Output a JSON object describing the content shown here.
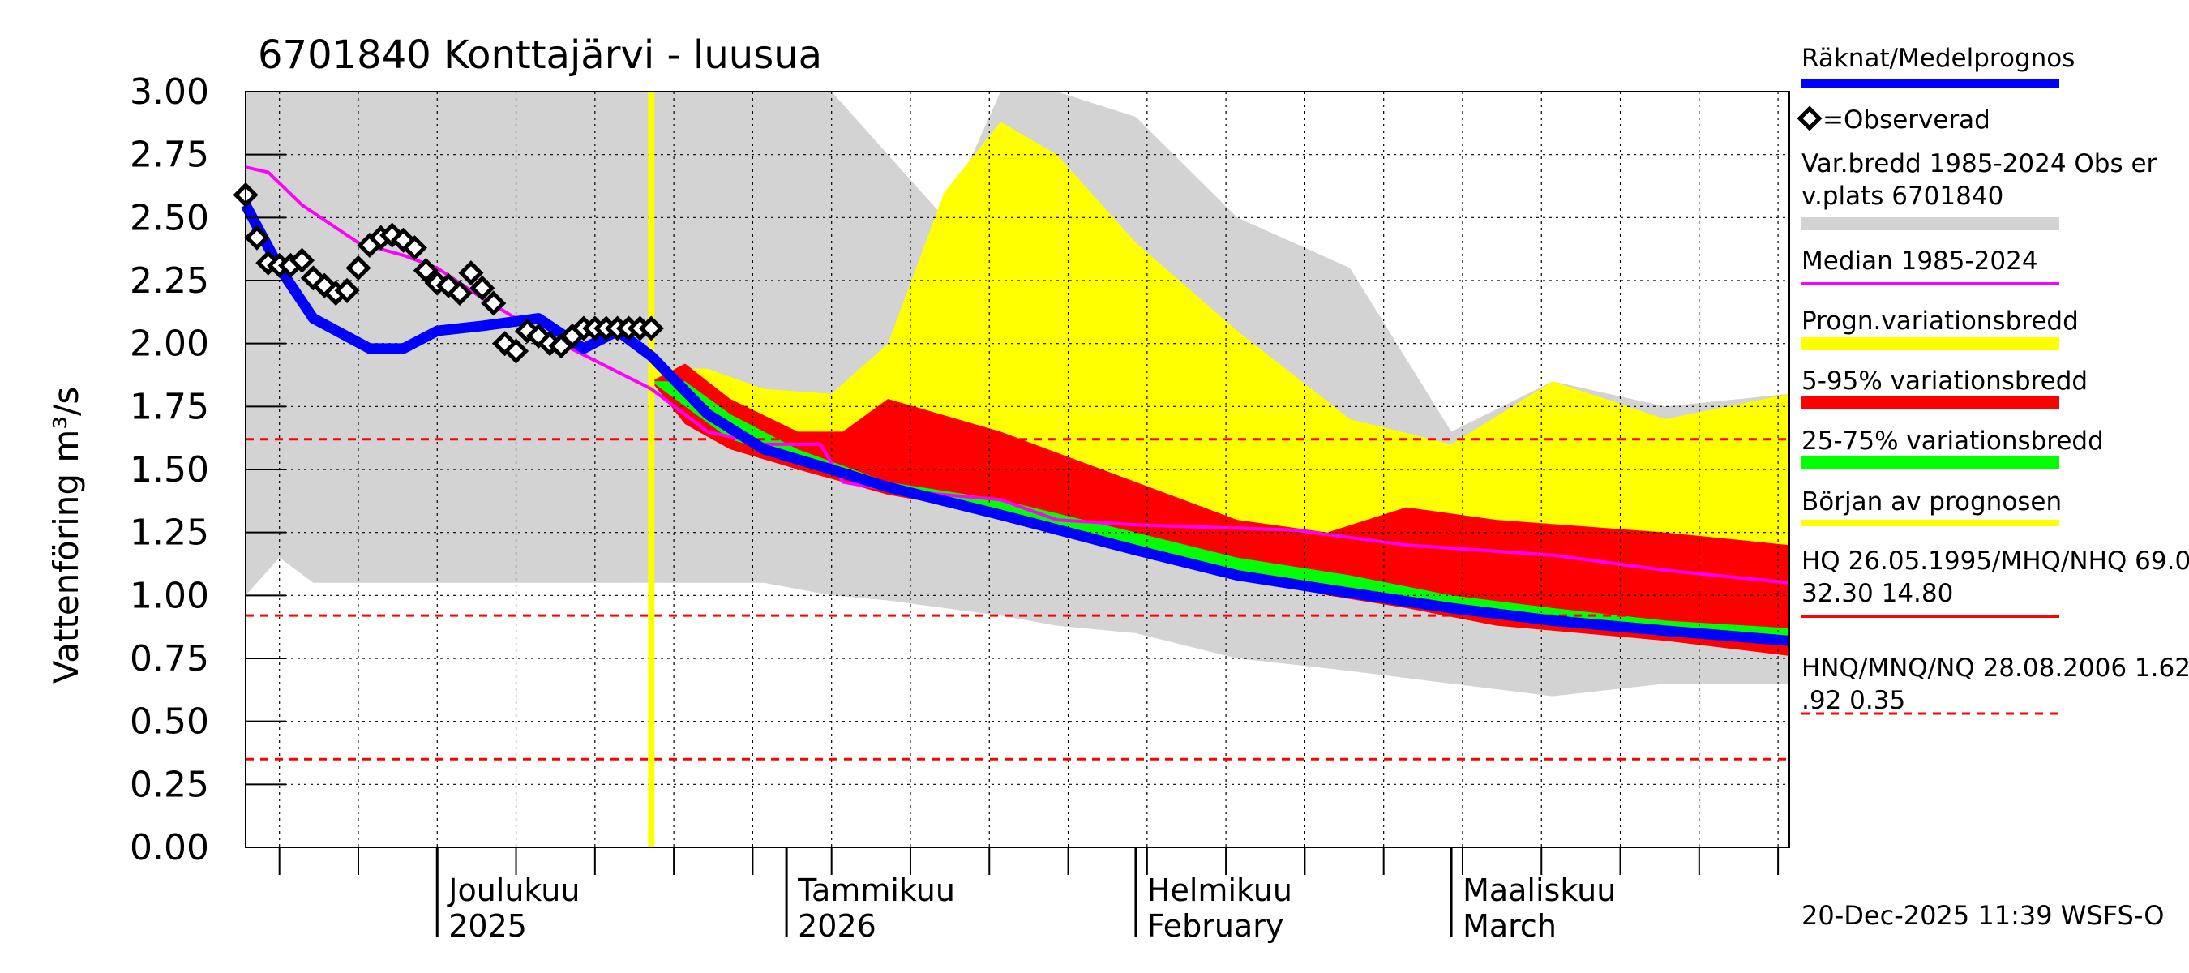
{
  "chart_data": {
    "type": "area",
    "title": "6701840 Konttajärvi - luusua",
    "ylabel": "Vattenföring m³/s",
    "ylim": [
      0,
      3.0
    ],
    "yticks": [
      "0.00",
      "0.25",
      "0.50",
      "0.75",
      "1.00",
      "1.25",
      "1.50",
      "1.75",
      "2.00",
      "2.25",
      "2.50",
      "2.75",
      "3.00"
    ],
    "x_start": "2025-11-14",
    "x_end": "2026-03-31",
    "forecast_start": "2025-12-20",
    "month_labels": [
      {
        "line1": "Joulukuu",
        "line2": "2025",
        "date": "2025-12-01"
      },
      {
        "line1": "Tammikuu",
        "line2": "2026",
        "date": "2026-01-01"
      },
      {
        "line1": "Helmikuu",
        "line2": "February",
        "date": "2026-02-01"
      },
      {
        "line1": "Maaliskuu",
        "line2": "March",
        "date": "2026-03-01"
      }
    ],
    "ref_lines": [
      1.62,
      0.92,
      0.35
    ],
    "series": [
      {
        "name": "Var.bredd 1985-2024 Obs erv.plats 6701840",
        "color": "#d3d3d3",
        "type": "band",
        "x": [
          "2025-11-14",
          "2025-11-17",
          "2025-11-20",
          "2025-11-25",
          "2025-12-01",
          "2025-12-10",
          "2025-12-20",
          "2025-12-30",
          "2026-01-05",
          "2026-01-10",
          "2026-01-15",
          "2026-01-20",
          "2026-01-25",
          "2026-02-01",
          "2026-02-10",
          "2026-02-20",
          "2026-03-01",
          "2026-03-10",
          "2026-03-20",
          "2026-03-31"
        ],
        "upper": [
          3.0,
          3.0,
          3.0,
          3.0,
          3.0,
          3.0,
          3.0,
          3.0,
          3.0,
          2.75,
          2.5,
          3.0,
          3.0,
          2.9,
          2.5,
          2.3,
          1.65,
          1.85,
          1.75,
          1.8
        ],
        "lower": [
          1.0,
          1.15,
          1.05,
          1.05,
          1.05,
          1.05,
          1.05,
          1.05,
          1.0,
          0.98,
          0.95,
          0.92,
          0.88,
          0.85,
          0.75,
          0.7,
          0.65,
          0.6,
          0.65,
          0.65
        ]
      },
      {
        "name": "Progn.variationsbredd",
        "color": "#ffff00",
        "type": "band",
        "x": [
          "2025-12-20",
          "2025-12-25",
          "2025-12-30",
          "2026-01-05",
          "2026-01-10",
          "2026-01-15",
          "2026-01-20",
          "2026-01-25",
          "2026-02-01",
          "2026-02-10",
          "2026-02-20",
          "2026-03-01",
          "2026-03-10",
          "2026-03-20",
          "2026-03-31"
        ],
        "upper": [
          1.9,
          1.9,
          1.82,
          1.8,
          2.0,
          2.6,
          2.88,
          2.75,
          2.4,
          2.05,
          1.7,
          1.6,
          1.85,
          1.7,
          1.8
        ],
        "lower": [
          1.85,
          1.68,
          1.55,
          1.5,
          1.45,
          1.4,
          1.35,
          1.3,
          1.22,
          1.12,
          1.05,
          0.98,
          0.92,
          0.85,
          0.78
        ]
      },
      {
        "name": "5-95% variationsbredd",
        "color": "#ff0000",
        "type": "band",
        "x": [
          "2025-12-20",
          "2025-12-23",
          "2025-12-27",
          "2026-01-02",
          "2026-01-06",
          "2026-01-10",
          "2026-01-20",
          "2026-02-01",
          "2026-02-10",
          "2026-02-18",
          "2026-02-25",
          "2026-03-05",
          "2026-03-20",
          "2026-03-31"
        ],
        "upper": [
          1.85,
          1.92,
          1.78,
          1.65,
          1.65,
          1.78,
          1.65,
          1.45,
          1.3,
          1.25,
          1.35,
          1.3,
          1.25,
          1.2
        ],
        "lower": [
          1.85,
          1.68,
          1.58,
          1.5,
          1.45,
          1.4,
          1.32,
          1.2,
          1.1,
          1.0,
          0.95,
          0.88,
          0.82,
          0.76
        ]
      },
      {
        "name": "25-75% variationsbredd",
        "color": "#00ff00",
        "type": "band",
        "x": [
          "2025-12-20",
          "2025-12-23",
          "2025-12-27",
          "2026-01-02",
          "2026-01-10",
          "2026-01-20",
          "2026-02-01",
          "2026-02-10",
          "2026-02-20",
          "2026-03-01",
          "2026-03-10",
          "2026-03-20",
          "2026-03-31"
        ],
        "upper": [
          1.85,
          1.85,
          1.72,
          1.58,
          1.45,
          1.38,
          1.25,
          1.15,
          1.08,
          1.0,
          0.95,
          0.9,
          0.87
        ],
        "lower": [
          1.85,
          1.75,
          1.62,
          1.54,
          1.43,
          1.32,
          1.2,
          1.1,
          1.03,
          0.96,
          0.9,
          0.85,
          0.8
        ]
      },
      {
        "name": "Median 1985-2024",
        "color": "#ff00ff",
        "type": "line",
        "x": [
          "2025-11-14",
          "2025-11-16",
          "2025-11-19",
          "2025-11-24",
          "2025-11-28",
          "2025-12-01",
          "2025-12-05",
          "2025-12-08",
          "2025-12-12",
          "2025-12-20",
          "2025-12-25",
          "2025-12-30",
          "2026-01-04",
          "2026-01-06",
          "2026-01-10",
          "2026-01-20",
          "2026-01-25",
          "2026-02-01",
          "2026-02-15",
          "2026-02-25",
          "2026-03-10",
          "2026-03-20",
          "2026-03-31"
        ],
        "y": [
          2.7,
          2.68,
          2.55,
          2.4,
          2.35,
          2.3,
          2.18,
          2.1,
          2.0,
          1.82,
          1.65,
          1.6,
          1.6,
          1.45,
          1.42,
          1.38,
          1.3,
          1.28,
          1.26,
          1.2,
          1.16,
          1.1,
          1.05
        ]
      },
      {
        "name": "Räknat/Medelprognos",
        "color": "#0000ff",
        "type": "line",
        "x": [
          "2025-11-14",
          "2025-11-17",
          "2025-11-20",
          "2025-11-25",
          "2025-11-28",
          "2025-12-01",
          "2025-12-05",
          "2025-12-10",
          "2025-12-14",
          "2025-12-17",
          "2025-12-20",
          "2025-12-25",
          "2025-12-30",
          "2026-01-05",
          "2026-01-10",
          "2026-01-20",
          "2026-02-01",
          "2026-02-10",
          "2026-02-20",
          "2026-03-01",
          "2026-03-10",
          "2026-03-20",
          "2026-03-31"
        ],
        "y": [
          2.55,
          2.3,
          2.1,
          1.98,
          1.98,
          2.05,
          2.07,
          2.1,
          1.98,
          2.05,
          1.95,
          1.72,
          1.58,
          1.5,
          1.43,
          1.32,
          1.18,
          1.08,
          1.01,
          0.95,
          0.9,
          0.86,
          0.82
        ]
      },
      {
        "name": "=Observerad",
        "color": "#000000",
        "type": "scatter",
        "x": [
          "2025-11-14",
          "2025-11-15",
          "2025-11-16",
          "2025-11-17",
          "2025-11-18",
          "2025-11-19",
          "2025-11-20",
          "2025-11-21",
          "2025-11-22",
          "2025-11-23",
          "2025-11-24",
          "2025-11-25",
          "2025-11-26",
          "2025-11-27",
          "2025-11-28",
          "2025-11-29",
          "2025-11-30",
          "2025-12-01",
          "2025-12-02",
          "2025-12-03",
          "2025-12-04",
          "2025-12-05",
          "2025-12-06",
          "2025-12-07",
          "2025-12-08",
          "2025-12-09",
          "2025-12-10",
          "2025-12-11",
          "2025-12-12",
          "2025-12-13",
          "2025-12-14",
          "2025-12-15",
          "2025-12-16",
          "2025-12-17",
          "2025-12-18",
          "2025-12-19",
          "2025-12-20"
        ],
        "y": [
          2.59,
          2.42,
          2.32,
          2.31,
          2.31,
          2.33,
          2.26,
          2.23,
          2.2,
          2.21,
          2.3,
          2.39,
          2.42,
          2.43,
          2.41,
          2.38,
          2.29,
          2.24,
          2.23,
          2.2,
          2.28,
          2.22,
          2.16,
          2.0,
          1.97,
          2.05,
          2.03,
          2.0,
          1.99,
          2.03,
          2.06,
          2.06,
          2.06,
          2.06,
          2.06,
          2.06,
          2.06
        ]
      }
    ],
    "legend": [
      {
        "text": "Räknat/Medelprognos",
        "color": "#0000ff",
        "kind": "line"
      },
      {
        "text": "=Observerad",
        "color": "#000000",
        "kind": "marker"
      },
      {
        "text": "Var.bredd 1985-2024 Obs erv.plats 6701840",
        "color": "#d3d3d3",
        "kind": "band"
      },
      {
        "text": "Median 1985-2024",
        "color": "#ff00ff",
        "kind": "line"
      },
      {
        "text": "Progn.variationsbredd",
        "color": "#ffff00",
        "kind": "band"
      },
      {
        "text": "5-95% variationsbredd",
        "color": "#ff0000",
        "kind": "band"
      },
      {
        "text": "25-75% variationsbredd",
        "color": "#00ff00",
        "kind": "band"
      },
      {
        "text": "Början av prognosen",
        "color": "#ffff00",
        "kind": "line"
      },
      {
        "text": "HQ 26.05.1995/MHQ/NHQ 69.00 32.30 14.80",
        "color": "#ff0000",
        "kind": "line"
      },
      {
        "text": "HNQ/MNQ/NQ 28.08.2006 1.62 0.92 0.35",
        "color": "#ff0000",
        "kind": "dashed"
      }
    ],
    "footer": "20-Dec-2025 11:39 WSFS-O"
  }
}
